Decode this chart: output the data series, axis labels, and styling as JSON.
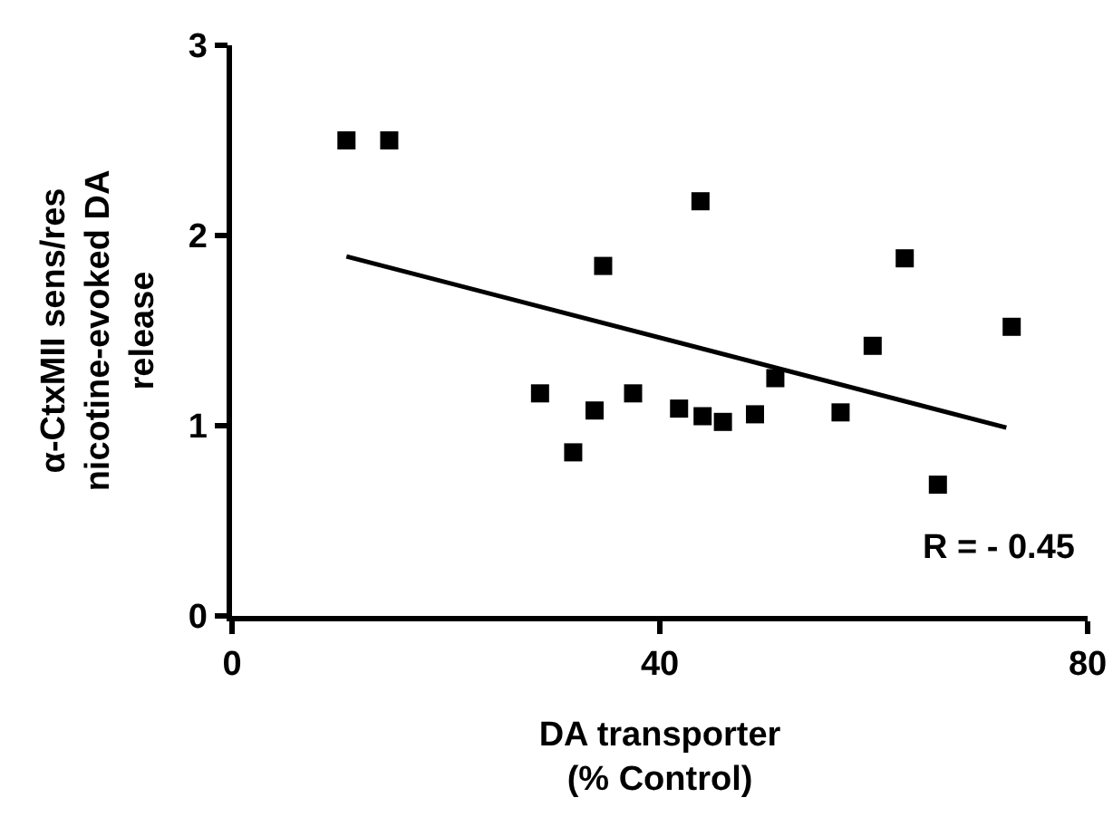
{
  "chart_data": {
    "type": "scatter",
    "xlabel": "DA transporter\n(% Control)",
    "ylabel": "α-CtxMII sens/res\nnicotine-evoked DA\nrelease",
    "series": [
      {
        "color": "#000000",
        "x": [
          10.7,
          14.7,
          28.8,
          31.9,
          33.9,
          34.7,
          37.5,
          41.8,
          43.8,
          44.0,
          45.9,
          48.9,
          50.8,
          56.9,
          59.9,
          62.9,
          66.0,
          72.9
        ],
        "values": [
          2.5,
          2.5,
          1.17,
          0.86,
          1.08,
          1.84,
          1.17,
          1.09,
          2.18,
          1.05,
          1.02,
          1.06,
          1.25,
          1.07,
          1.42,
          1.88,
          0.69,
          1.52
        ]
      },
      {
        "type": "line",
        "marker": "none",
        "color": "#000000",
        "x": [
          10.7,
          72.4
        ],
        "values": [
          1.89,
          0.99
        ]
      }
    ],
    "xlim": [
      0,
      80
    ],
    "xticks": [
      0,
      40,
      80
    ],
    "ylim": [
      0,
      3
    ],
    "yticks": [
      0,
      1,
      2,
      3
    ],
    "annotations": [
      "R = - 0.45"
    ],
    "marker": "square",
    "grid": false
  }
}
